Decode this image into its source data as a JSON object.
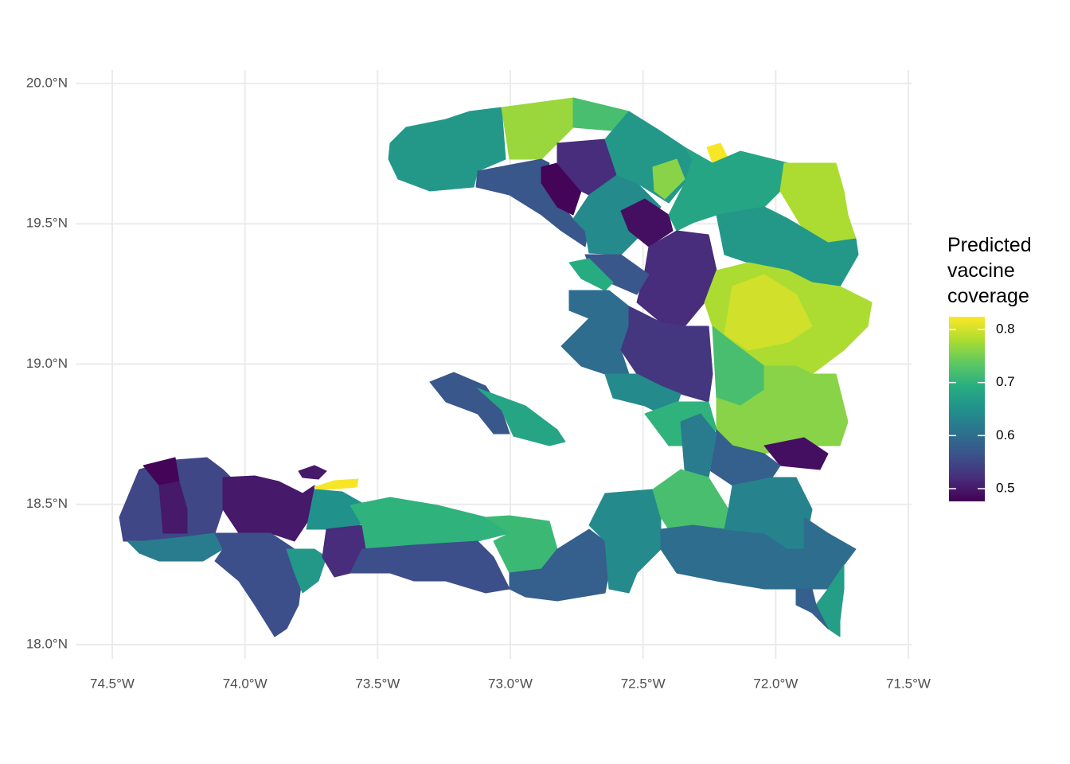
{
  "chart_data": {
    "type": "choropleth",
    "legend_title": "Predicted vaccine coverage",
    "xlim": [
      -74.638,
      -71.488
    ],
    "ylim": [
      17.949,
      20.048
    ],
    "xticks": [
      {
        "value": -74.5,
        "label": "74.5°W"
      },
      {
        "value": -74.0,
        "label": "74.0°W"
      },
      {
        "value": -73.5,
        "label": "73.5°W"
      },
      {
        "value": -73.0,
        "label": "73.0°W"
      },
      {
        "value": -72.5,
        "label": "72.5°W"
      },
      {
        "value": -72.0,
        "label": "72.0°W"
      },
      {
        "value": -71.5,
        "label": "71.5°W"
      }
    ],
    "yticks": [
      {
        "value": 18.0,
        "label": "18.0°N"
      },
      {
        "value": 18.5,
        "label": "18.5°N"
      },
      {
        "value": 19.0,
        "label": "19.0°N"
      },
      {
        "value": 19.5,
        "label": "19.5°N"
      },
      {
        "value": 20.0,
        "label": "20.0°N"
      }
    ],
    "grid": true,
    "colorscale": "viridis",
    "colorbar_lim": [
      0.476,
      0.824
    ],
    "colorbar_ticks": [
      0.5,
      0.6,
      0.7,
      0.8
    ],
    "values": [
      0.66,
      0.77,
      0.72,
      0.57,
      0.48,
      0.52,
      0.64,
      0.49,
      0.66,
      0.76,
      0.82,
      0.68,
      0.78,
      0.66,
      0.52,
      0.57,
      0.69,
      0.78,
      0.8,
      0.6,
      0.53,
      0.72,
      0.76,
      0.64,
      0.7,
      0.49,
      0.58,
      0.62,
      0.57,
      0.68,
      0.55,
      0.48,
      0.5,
      0.5,
      0.62,
      0.56,
      0.66,
      0.5,
      0.82,
      0.65,
      0.52,
      0.7,
      0.56,
      0.71,
      0.58,
      0.64,
      0.72,
      0.6,
      0.63,
      0.6,
      0.67,
      0.58
    ]
  }
}
